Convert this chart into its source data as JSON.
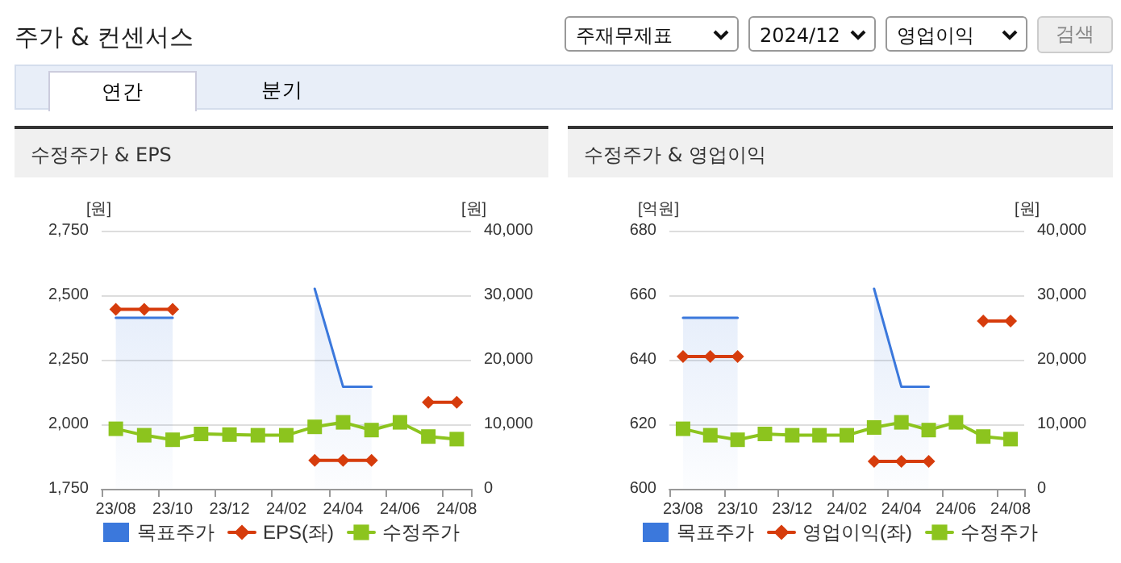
{
  "chart_data": [
    {
      "type": "other",
      "title": "주가 & 컨센서스",
      "annotations": [
        "주재무제표",
        "2024/12",
        "영업이익",
        "검색",
        "연간",
        "분기"
      ]
    },
    {
      "type": "line",
      "title": "수정주가 & EPS",
      "ylabel": "[원]",
      "y2label": "[원]",
      "categories": [
        "23/08",
        null,
        "23/10",
        null,
        "23/12",
        null,
        "24/02",
        null,
        "24/04",
        null,
        "24/06",
        null,
        "24/08"
      ],
      "series": [
        {
          "name": "목표주가",
          "type": "area",
          "axis": "y2",
          "marker": "none",
          "color": "#3b78dc",
          "values": [
            26500,
            26500,
            26500,
            null,
            null,
            null,
            null,
            31000,
            15800,
            15800,
            null,
            null,
            null
          ]
        },
        {
          "name": "EPS(좌)",
          "type": "line",
          "marker": "diamond",
          "color": "#d63c0c",
          "values": [
            2445,
            2445,
            2445,
            null,
            null,
            null,
            null,
            1860,
            1860,
            1860,
            null,
            2085,
            2085
          ]
        },
        {
          "name": "수정주가",
          "type": "line",
          "axis": "y2",
          "marker": "square",
          "color": "#8cc41e",
          "values": [
            9300,
            8300,
            7600,
            8500,
            8400,
            8300,
            8300,
            9600,
            10300,
            9100,
            10300,
            8100,
            7700
          ]
        }
      ],
      "ylim": [
        1750,
        2750
      ],
      "yticks": [
        {
          "value": 1750,
          "label": "1,750"
        },
        {
          "value": 2000,
          "label": "2,000"
        },
        {
          "value": 2250,
          "label": "2,250"
        },
        {
          "value": 2500,
          "label": "2,500"
        },
        {
          "value": 2750,
          "label": "2,750"
        }
      ],
      "y2lim": [
        0,
        40000
      ],
      "y2ticks": [
        0,
        {
          "value": 10000,
          "label": "10,000"
        },
        {
          "value": 20000,
          "label": "20,000"
        },
        {
          "value": 30000,
          "label": "30,000"
        },
        {
          "value": 40000,
          "label": "40,000"
        }
      ],
      "grid": "y",
      "legend": "bottom",
      "line_style": "solid"
    },
    {
      "type": "line",
      "title": "수정주가 & 영업이익",
      "ylabel": "[억원]",
      "y2label": "[원]",
      "categories": [
        "23/08",
        null,
        "23/10",
        null,
        "23/12",
        null,
        "24/02",
        null,
        "24/04",
        null,
        "24/06",
        null,
        "24/08"
      ],
      "series": [
        {
          "name": "목표주가",
          "type": "area",
          "axis": "y2",
          "marker": "none",
          "color": "#3b78dc",
          "values": [
            26500,
            26500,
            26500,
            null,
            null,
            null,
            null,
            31000,
            15800,
            15800,
            null,
            null,
            null
          ]
        },
        {
          "name": "영업이익(좌)",
          "type": "line",
          "marker": "diamond",
          "color": "#d63c0c",
          "values": [
            641,
            641,
            641,
            null,
            null,
            null,
            null,
            608.5,
            608.5,
            608.5,
            null,
            652,
            652
          ]
        },
        {
          "name": "수정주가",
          "type": "line",
          "axis": "y2",
          "marker": "square",
          "color": "#8cc41e",
          "values": [
            9300,
            8300,
            7600,
            8500,
            8300,
            8300,
            8300,
            9500,
            10300,
            9100,
            10300,
            8100,
            7700
          ]
        }
      ],
      "ylim": [
        600,
        680
      ],
      "yticks": [
        600,
        620,
        640,
        660,
        680
      ],
      "y2lim": [
        0,
        40000
      ],
      "y2ticks": [
        0,
        {
          "value": 10000,
          "label": "10,000"
        },
        {
          "value": 20000,
          "label": "20,000"
        },
        {
          "value": 30000,
          "label": "30,000"
        },
        {
          "value": 40000,
          "label": "40,000"
        }
      ],
      "grid": "y",
      "legend": "bottom",
      "line_style": "solid"
    }
  ]
}
